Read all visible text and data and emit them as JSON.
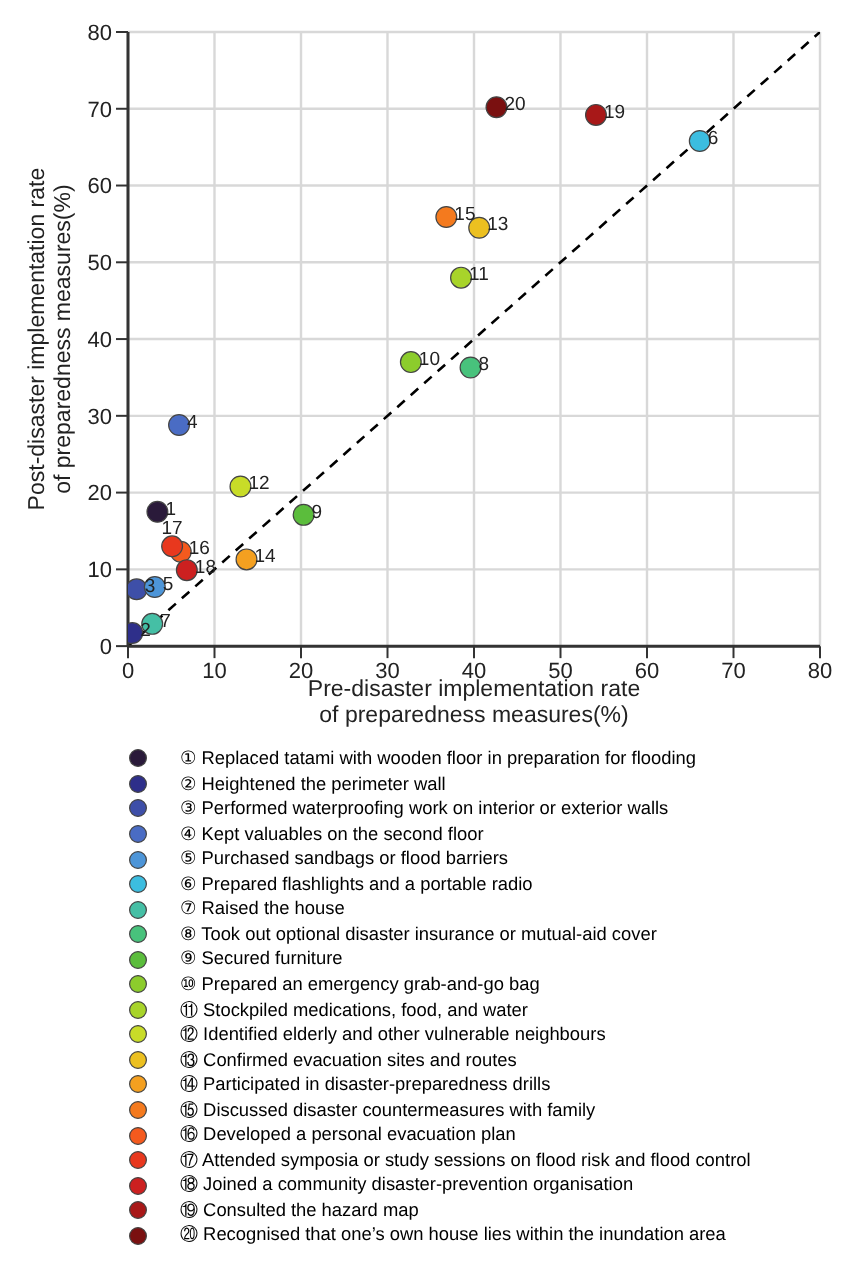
{
  "chart_data": {
    "type": "scatter",
    "xlabel": "Pre-disaster implementation rate of preparedness measures(%)",
    "ylabel": "Post-disaster implementation rate of preparedness measures(%)",
    "xlim": [
      0,
      80
    ],
    "ylim": [
      0,
      80
    ],
    "xticks": [
      0,
      10,
      20,
      30,
      40,
      50,
      60,
      70,
      80
    ],
    "yticks": [
      0,
      10,
      20,
      30,
      40,
      50,
      60,
      70,
      80
    ],
    "grid": true,
    "legend": "bottom",
    "marker": "circle",
    "series": [
      {
        "name": "① Replaced tatami with wooden floor in preparation for flooding",
        "color": "#2a1a3a",
        "x": [
          3.4
        ],
        "values": [
          17.5
        ]
      },
      {
        "name": "② Heightened the perimeter wall",
        "color": "#2e2f8a",
        "x": [
          0.5
        ],
        "values": [
          1.7
        ]
      },
      {
        "name": "③ Performed waterproofing work on interior or exterior walls",
        "color": "#3e4fa8",
        "x": [
          1.0
        ],
        "values": [
          7.4
        ]
      },
      {
        "name": "④ Kept valuables on the second floor",
        "color": "#4a6cc4",
        "x": [
          5.9
        ],
        "values": [
          28.8
        ]
      },
      {
        "name": "⑤ Purchased sandbags or flood barriers",
        "color": "#4d95d8",
        "x": [
          3.1
        ],
        "values": [
          7.7
        ]
      },
      {
        "name": "⑥ Prepared flashlights and a portable radio",
        "color": "#3cbde0",
        "x": [
          66.1
        ],
        "values": [
          65.8
        ]
      },
      {
        "name": "⑦ Raised the house",
        "color": "#45bfa5",
        "x": [
          2.8
        ],
        "values": [
          2.9
        ]
      },
      {
        "name": "⑧ Took out optional disaster insurance or mutual-aid cover",
        "color": "#48c27c",
        "x": [
          39.6
        ],
        "values": [
          36.3
        ]
      },
      {
        "name": "⑨ Secured furniture",
        "color": "#5bbd3c",
        "x": [
          20.3
        ],
        "values": [
          17.1
        ]
      },
      {
        "name": "⑩ Prepared an emergency grab-and-go bag",
        "color": "#8ccc2c",
        "x": [
          32.7
        ],
        "values": [
          37.0
        ]
      },
      {
        "name": "⑪ Stockpiled medications, food, and water",
        "color": "#a8d42a",
        "x": [
          38.5
        ],
        "values": [
          48.0
        ]
      },
      {
        "name": "⑫ Identified elderly and other vulnerable neighbours",
        "color": "#c8dc28",
        "x": [
          13.0
        ],
        "values": [
          20.8
        ]
      },
      {
        "name": "⑬ Confirmed evacuation sites and routes",
        "color": "#ecc020",
        "x": [
          40.6
        ],
        "values": [
          54.5
        ]
      },
      {
        "name": "⑭ Participated in disaster-preparedness drills",
        "color": "#f4a020",
        "x": [
          13.7
        ],
        "values": [
          11.3
        ]
      },
      {
        "name": "⑮ Discussed disaster countermeasures with family",
        "color": "#f47a1e",
        "x": [
          36.8
        ],
        "values": [
          55.9
        ]
      },
      {
        "name": "⑯ Developed a personal evacuation plan",
        "color": "#f45a1e",
        "x": [
          6.1
        ],
        "values": [
          12.3
        ]
      },
      {
        "name": "⑰ Attended symposia or study sessions on flood risk and flood control",
        "color": "#e8381e",
        "x": [
          5.1
        ],
        "values": [
          13.0
        ]
      },
      {
        "name": "⑱ Joined a community disaster-prevention organisation",
        "color": "#cc2020",
        "x": [
          6.8
        ],
        "values": [
          9.9
        ]
      },
      {
        "name": "⑲ Consulted the hazard map",
        "color": "#a81818",
        "x": [
          54.1
        ],
        "values": [
          69.2
        ]
      },
      {
        "name": "⑳ Recognised that one’s own house lies within the inundation area",
        "color": "#7a1010",
        "x": [
          42.6
        ],
        "values": [
          70.2
        ]
      },
      {
        "type": "line",
        "color": "#000000",
        "line_style": "dashed",
        "marker": "none",
        "x": [
          0,
          80
        ],
        "values": [
          0,
          80
        ]
      }
    ],
    "annotations": [
      {
        "text": "1",
        "x": 3.4,
        "y": 17.5
      },
      {
        "text": "2",
        "x": 0.5,
        "y": 1.7
      },
      {
        "text": "3",
        "x": 1.0,
        "y": 7.4
      },
      {
        "text": "4",
        "x": 5.9,
        "y": 28.8
      },
      {
        "text": "5",
        "x": 3.1,
        "y": 7.7
      },
      {
        "text": "6",
        "x": 66.1,
        "y": 65.8
      },
      {
        "text": "7",
        "x": 2.8,
        "y": 2.9
      },
      {
        "text": "8",
        "x": 39.6,
        "y": 36.3
      },
      {
        "text": "9",
        "x": 20.3,
        "y": 17.1
      },
      {
        "text": "10",
        "x": 32.7,
        "y": 37.0
      },
      {
        "text": "11",
        "x": 38.5,
        "y": 48.0
      },
      {
        "text": "12",
        "x": 13.0,
        "y": 20.8
      },
      {
        "text": "13",
        "x": 40.6,
        "y": 54.5
      },
      {
        "text": "14",
        "x": 13.7,
        "y": 11.3
      },
      {
        "text": "15",
        "x": 36.8,
        "y": 55.9
      },
      {
        "text": "16",
        "x": 6.1,
        "y": 12.3
      },
      {
        "text": "17",
        "x": 5.1,
        "y": 13.0
      },
      {
        "text": "18",
        "x": 6.8,
        "y": 9.9
      },
      {
        "text": "19",
        "x": 54.1,
        "y": 69.2
      },
      {
        "text": "20",
        "x": 42.6,
        "y": 70.2
      }
    ]
  }
}
